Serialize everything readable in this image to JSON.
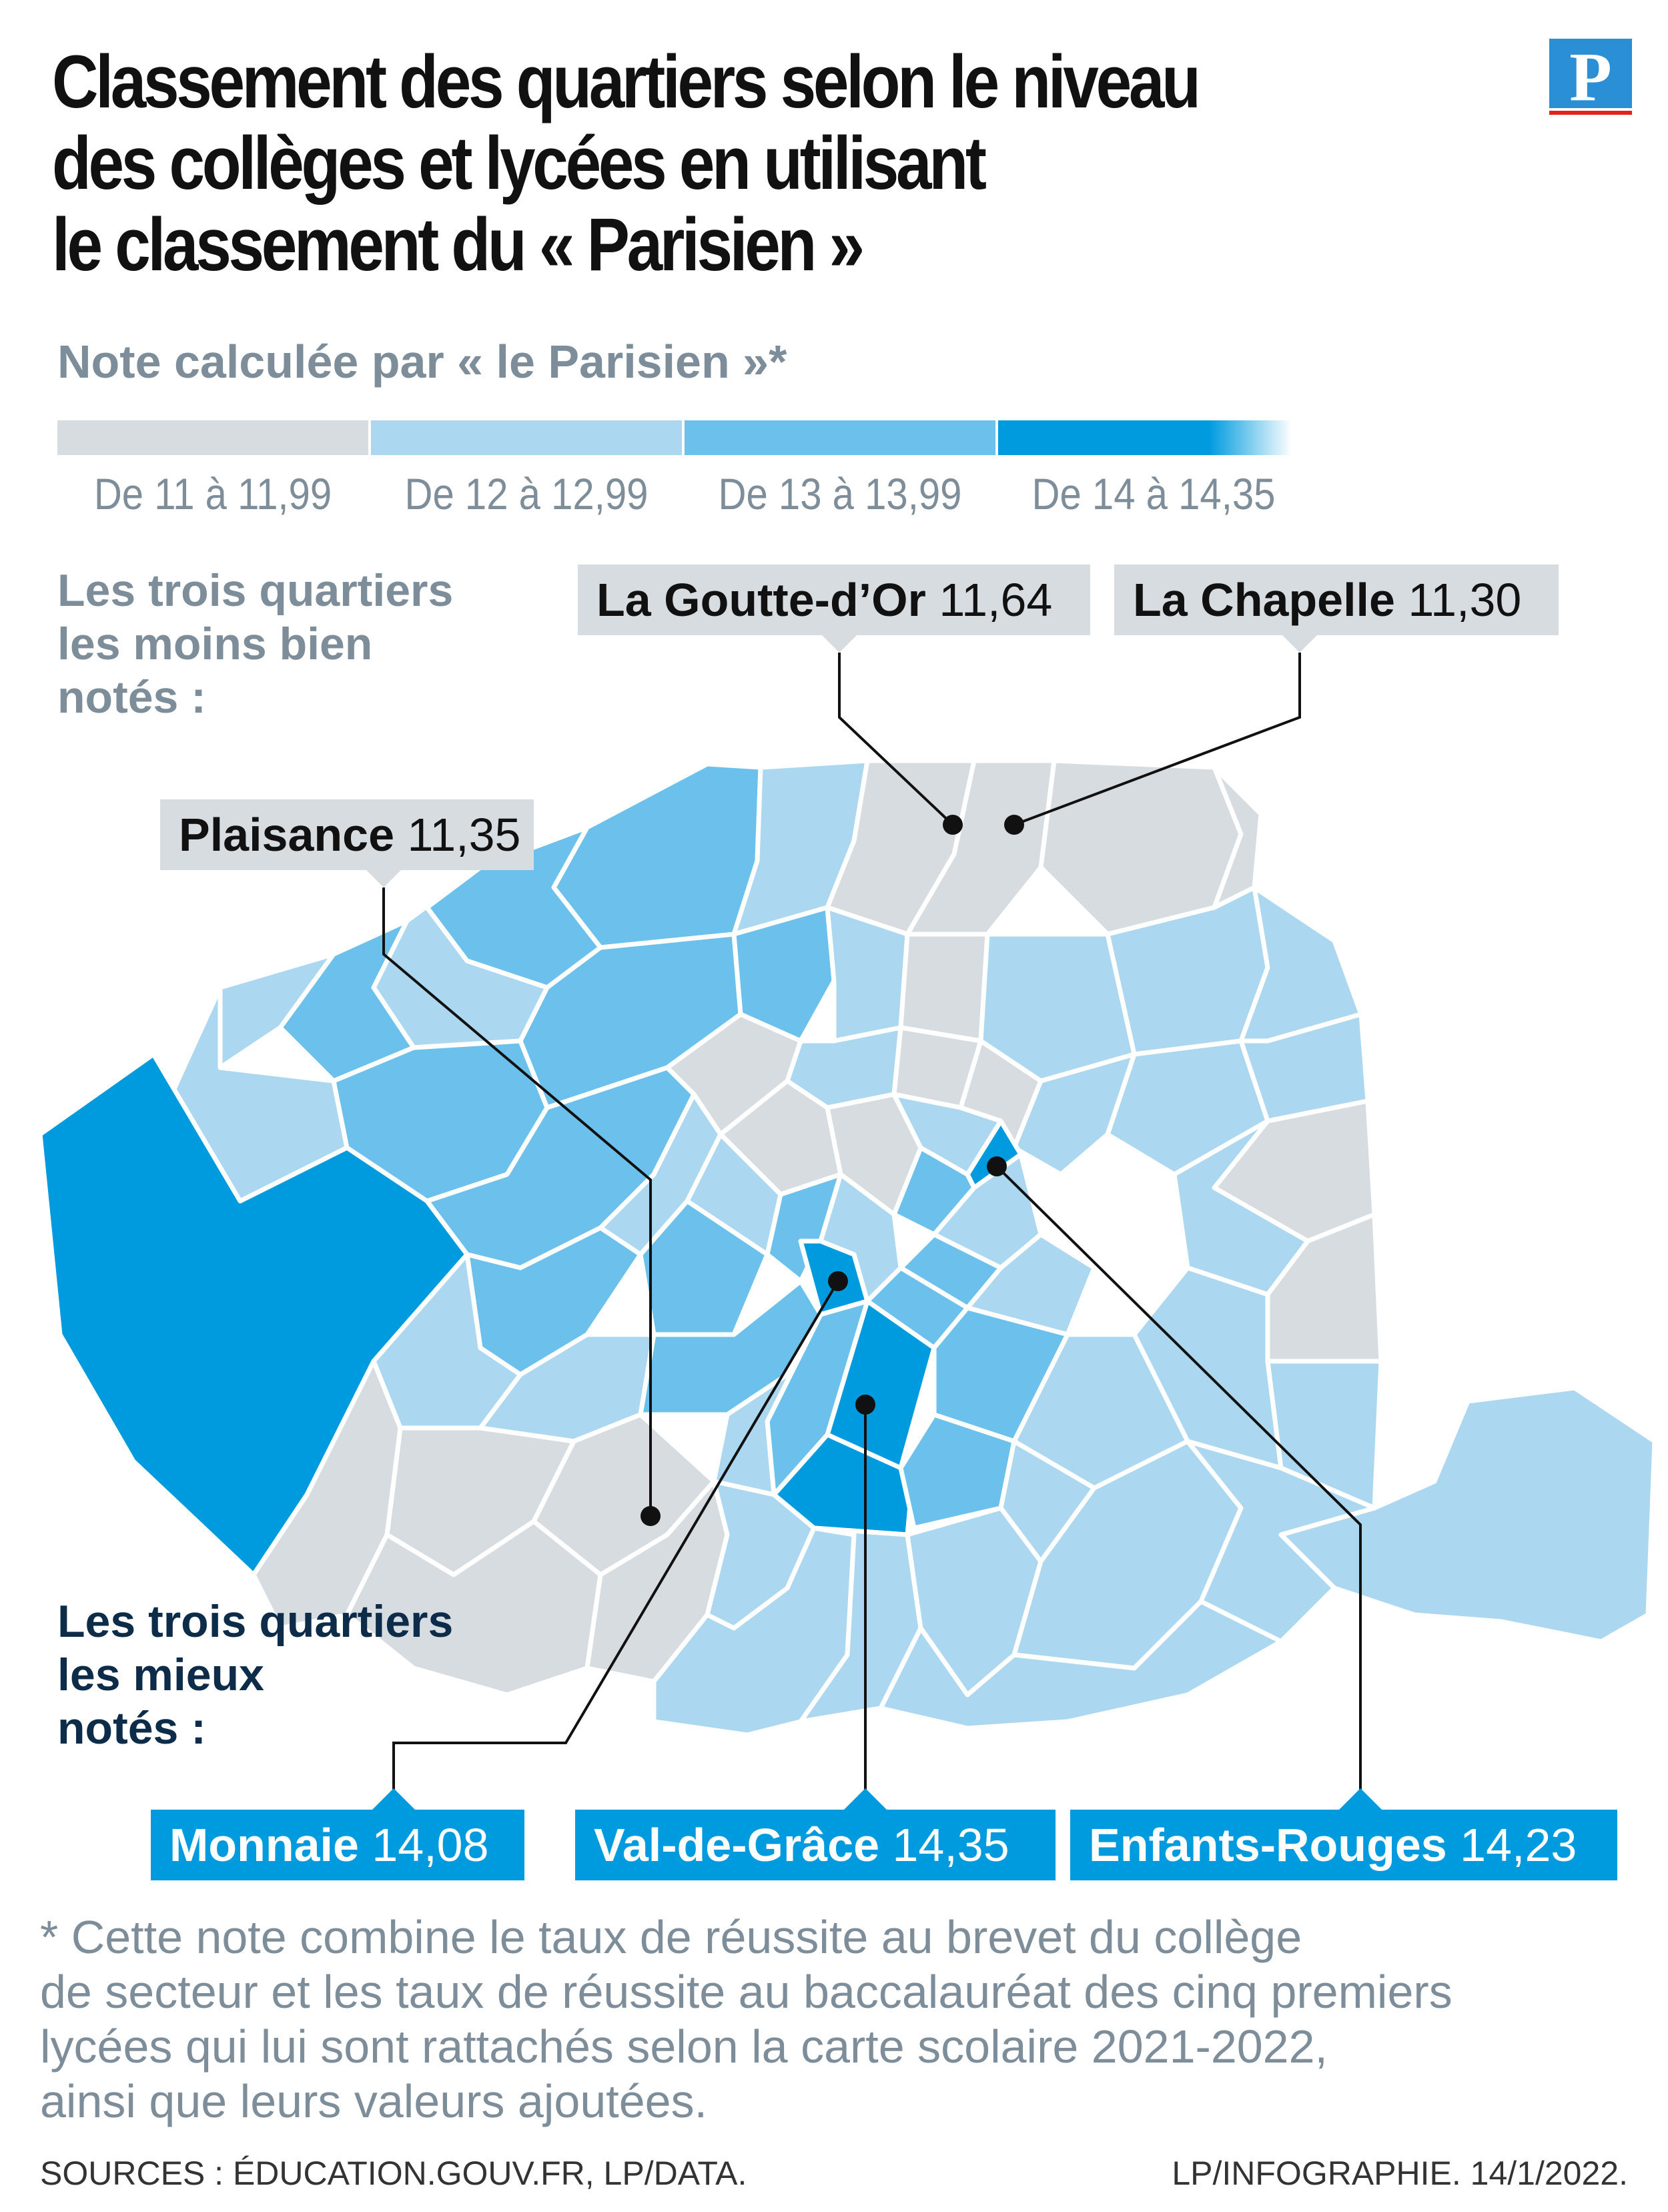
{
  "title": {
    "line1": "Classement des quartiers selon le niveau",
    "line2": "des collèges et lycées en utilisant",
    "line3": "le classement du « Parisien »"
  },
  "logo": {
    "letter": "P"
  },
  "legend": {
    "title": "Note calculée par « le Parisien »*",
    "items": [
      {
        "label": "De 11 à 11,99",
        "color": "#d7dce1"
      },
      {
        "label": "De 12 à 12,99",
        "color": "#acd7f1"
      },
      {
        "label": "De 13 à 13,99",
        "color": "#6cc1ec"
      },
      {
        "label": "De 14 à 14,35",
        "color": "#009bdf"
      }
    ]
  },
  "worst": {
    "heading": [
      "Les trois quartiers",
      "les moins bien",
      "notés :"
    ],
    "items": [
      {
        "name": "La Goutte-d’Or",
        "score": "11,64"
      },
      {
        "name": "La Chapelle",
        "score": "11,30"
      },
      {
        "name": "Plaisance",
        "score": "11,35"
      }
    ]
  },
  "best": {
    "heading": [
      "Les trois quartiers",
      "les mieux",
      "notés :"
    ],
    "items": [
      {
        "name": "Monnaie",
        "score": "14,08"
      },
      {
        "name": "Val-de-Grâce",
        "score": "14,35"
      },
      {
        "name": "Enfants-Rouges",
        "score": "14,23"
      }
    ]
  },
  "footnote": [
    "* Cette note combine le taux de réussite au brevet du collège",
    "de secteur et les taux de réussite au baccalauréat des cinq premiers",
    "lycées qui lui sont rattachés selon la carte scolaire 2021-2022,",
    "ainsi que leurs valeurs ajoutées."
  ],
  "sources": "SOURCES :  ÉDUCATION.GOUV.FR, LP/DATA.",
  "credit": "LP/INFOGRAPHIE.  14/1/2022.",
  "colors": {
    "tier1": "#d7dce1",
    "tier2": "#acd7f1",
    "tier3": "#6cc1ec",
    "tier4": "#009bdf",
    "border": "#ffffff",
    "accent_red": "#e2231a"
  }
}
